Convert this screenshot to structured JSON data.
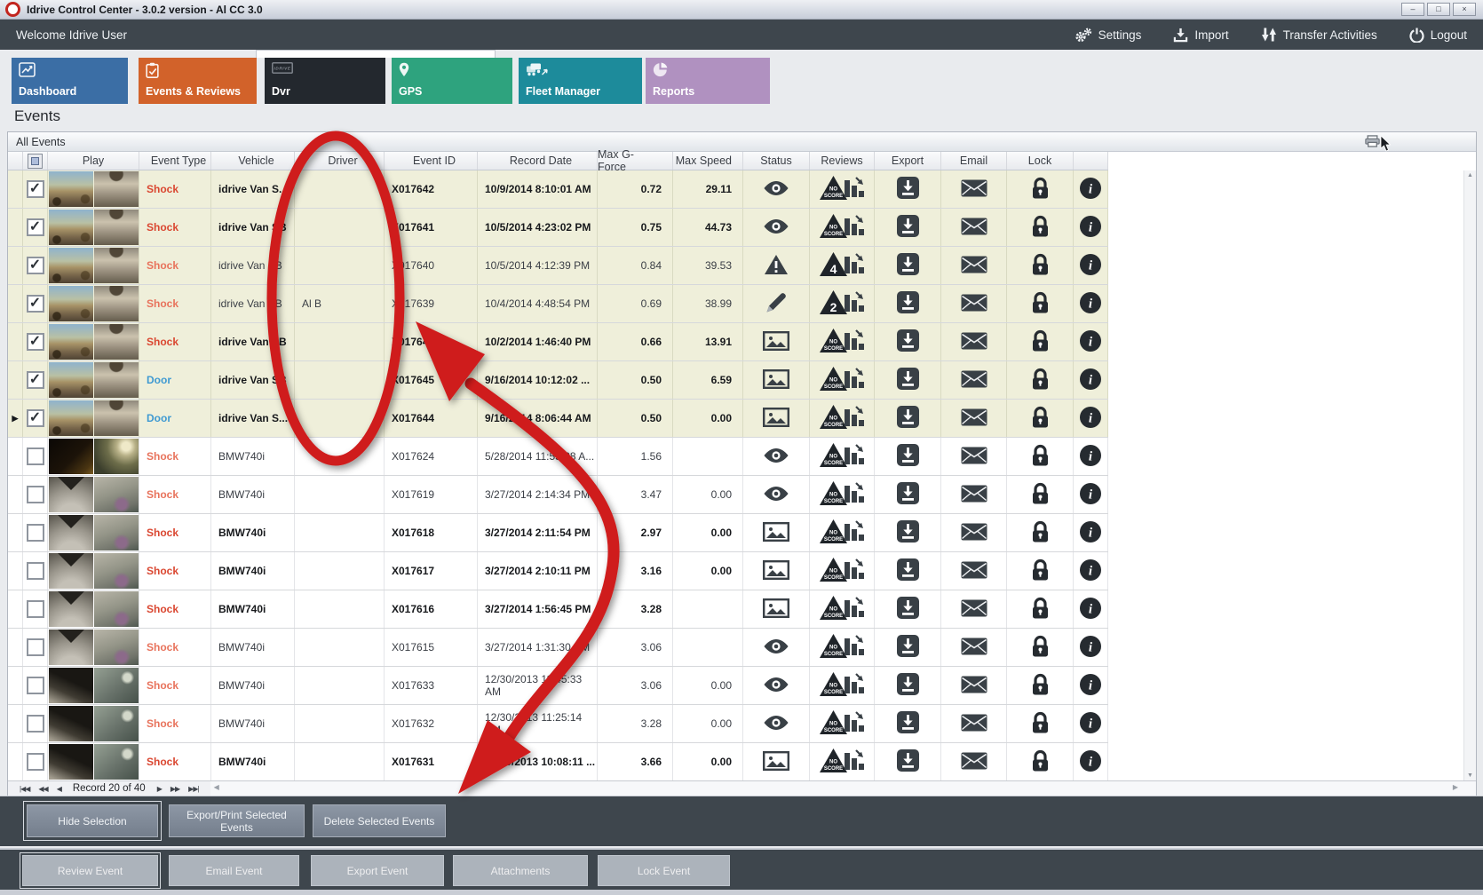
{
  "window": {
    "title": "Idrive Control Center - 3.0.2 version - Al CC 3.0",
    "controls": [
      "minimize",
      "maximize",
      "close"
    ]
  },
  "menubar": {
    "welcome": "Welcome Idrive User",
    "actions": [
      {
        "label": "Settings",
        "icon": "gears-icon"
      },
      {
        "label": "Import",
        "icon": "import-icon"
      },
      {
        "label": "Transfer Activities",
        "icon": "transfer-arrows-icon"
      },
      {
        "label": "Logout",
        "icon": "power-icon"
      }
    ]
  },
  "tabs": [
    {
      "label": "Dashboard",
      "color": "#3b6ea5",
      "icon": "line-chart-icon",
      "active": false
    },
    {
      "label": "Events & Reviews",
      "color": "#d2622a",
      "icon": "clipboard-icon",
      "active": true
    },
    {
      "label": "Dvr",
      "color": "#23282e",
      "icon": "dvr-device-icon",
      "active": false
    },
    {
      "label": "GPS",
      "color": "#2ea37e",
      "icon": "map-pin-icon",
      "active": false
    },
    {
      "label": "Fleet Manager",
      "color": "#1d8b9b",
      "icon": "fleet-trucks-icon",
      "active": false
    },
    {
      "label": "Reports",
      "color": "#b091c0",
      "icon": "pie-chart-icon",
      "active": false
    }
  ],
  "page": {
    "heading": "Events",
    "group_title": "All Events"
  },
  "table": {
    "columns": [
      "",
      "",
      "Play",
      "Event Type",
      "Vehicle",
      "Driver",
      "Event ID",
      "Record Date",
      "Max G-Force",
      "Max Speed",
      "Status",
      "Reviews",
      "Export",
      "Email",
      "Lock",
      ""
    ],
    "events": [
      {
        "current": false,
        "checked": true,
        "bold": true,
        "event_type": "Shock",
        "vehicle": "idrive Van S...",
        "driver": "",
        "event_id": "X017642",
        "record_date": "10/9/2014 8:10:01 AM",
        "g_force": "0.72",
        "speed": "29.11",
        "status_icon": "eye-icon",
        "review": "NO SCORE",
        "thumb": "van"
      },
      {
        "current": false,
        "checked": true,
        "bold": true,
        "event_type": "Shock",
        "vehicle": "idrive Van SB",
        "driver": "",
        "event_id": "X017641",
        "record_date": "10/5/2014 4:23:02 PM",
        "g_force": "0.75",
        "speed": "44.73",
        "status_icon": "eye-icon",
        "review": "NO SCORE",
        "thumb": "van"
      },
      {
        "current": false,
        "checked": true,
        "bold": false,
        "event_type": "Shock",
        "vehicle": "idrive Van SB",
        "driver": "",
        "event_id": "X017640",
        "record_date": "10/5/2014 4:12:39 PM",
        "g_force": "0.84",
        "speed": "39.53",
        "status_icon": "warning-icon",
        "review": "4",
        "thumb": "van"
      },
      {
        "current": false,
        "checked": true,
        "bold": false,
        "event_type": "Shock",
        "vehicle": "idrive Van SB",
        "driver": "Al B",
        "event_id": "X017639",
        "record_date": "10/4/2014 4:48:54 PM",
        "g_force": "0.69",
        "speed": "38.99",
        "status_icon": "pencil-icon",
        "review": "2",
        "thumb": "van"
      },
      {
        "current": false,
        "checked": true,
        "bold": true,
        "event_type": "Shock",
        "vehicle": "idrive Van SB",
        "driver": "",
        "event_id": "X017643",
        "record_date": "10/2/2014 1:46:40 PM",
        "g_force": "0.66",
        "speed": "13.91",
        "status_icon": "snapshot-icon",
        "review": "NO SCORE",
        "thumb": "van"
      },
      {
        "current": false,
        "checked": true,
        "bold": true,
        "event_type": "Door",
        "vehicle": "idrive Van SB",
        "driver": "",
        "event_id": "X017645",
        "record_date": "9/16/2014 10:12:02 ...",
        "g_force": "0.50",
        "speed": "6.59",
        "status_icon": "snapshot-icon",
        "review": "NO SCORE",
        "thumb": "van"
      },
      {
        "current": true,
        "checked": true,
        "bold": true,
        "event_type": "Door",
        "vehicle": "idrive Van S...",
        "driver": "",
        "event_id": "X017644",
        "record_date": "9/16/2014 8:06:44 AM",
        "g_force": "0.50",
        "speed": "0.00",
        "status_icon": "snapshot-icon",
        "review": "NO SCORE",
        "thumb": "van"
      },
      {
        "current": false,
        "checked": false,
        "bold": false,
        "event_type": "Shock",
        "vehicle": "BMW740i",
        "driver": "",
        "event_id": "X017624",
        "record_date": "5/28/2014 11:55:28 A...",
        "g_force": "1.56",
        "speed": "",
        "status_icon": "eye-icon",
        "review": "NO SCORE",
        "thumb": "night"
      },
      {
        "current": false,
        "checked": false,
        "bold": false,
        "event_type": "Shock",
        "vehicle": "BMW740i",
        "driver": "",
        "event_id": "X017619",
        "record_date": "3/27/2014 2:14:34 PM",
        "g_force": "3.47",
        "speed": "0.00",
        "status_icon": "eye-icon",
        "review": "NO SCORE",
        "thumb": "gray"
      },
      {
        "current": false,
        "checked": false,
        "bold": true,
        "event_type": "Shock",
        "vehicle": "BMW740i",
        "driver": "",
        "event_id": "X017618",
        "record_date": "3/27/2014 2:11:54 PM",
        "g_force": "2.97",
        "speed": "0.00",
        "status_icon": "snapshot-icon",
        "review": "NO SCORE",
        "thumb": "gray"
      },
      {
        "current": false,
        "checked": false,
        "bold": true,
        "event_type": "Shock",
        "vehicle": "BMW740i",
        "driver": "",
        "event_id": "X017617",
        "record_date": "3/27/2014 2:10:11 PM",
        "g_force": "3.16",
        "speed": "0.00",
        "status_icon": "snapshot-icon",
        "review": "NO SCORE",
        "thumb": "gray"
      },
      {
        "current": false,
        "checked": false,
        "bold": true,
        "event_type": "Shock",
        "vehicle": "BMW740i",
        "driver": "",
        "event_id": "X017616",
        "record_date": "3/27/2014 1:56:45 PM",
        "g_force": "3.28",
        "speed": "",
        "status_icon": "snapshot-icon",
        "review": "NO SCORE",
        "thumb": "gray"
      },
      {
        "current": false,
        "checked": false,
        "bold": false,
        "event_type": "Shock",
        "vehicle": "BMW740i",
        "driver": "",
        "event_id": "X017615",
        "record_date": "3/27/2014 1:31:30 PM",
        "g_force": "3.06",
        "speed": "",
        "status_icon": "eye-icon",
        "review": "NO SCORE",
        "thumb": "gray"
      },
      {
        "current": false,
        "checked": false,
        "bold": false,
        "event_type": "Shock",
        "vehicle": "BMW740i",
        "driver": "",
        "event_id": "X017633",
        "record_date": "12/30/2013 11:45:33 AM",
        "g_force": "3.06",
        "speed": "0.00",
        "status_icon": "eye-icon",
        "review": "NO SCORE",
        "thumb": "dark"
      },
      {
        "current": false,
        "checked": false,
        "bold": false,
        "event_type": "Shock",
        "vehicle": "BMW740i",
        "driver": "",
        "event_id": "X017632",
        "record_date": "12/30/2013 11:25:14 AM",
        "g_force": "3.28",
        "speed": "0.00",
        "status_icon": "eye-icon",
        "review": "NO SCORE",
        "thumb": "dark"
      },
      {
        "current": false,
        "checked": false,
        "bold": true,
        "event_type": "Shock",
        "vehicle": "BMW740i",
        "driver": "",
        "event_id": "X017631",
        "record_date": "12/30/2013 10:08:11 ...",
        "g_force": "3.66",
        "speed": "0.00",
        "status_icon": "snapshot-icon",
        "review": "NO SCORE",
        "thumb": "dark"
      }
    ]
  },
  "pagination": {
    "record_label": "Record 20 of 40",
    "nav_left": [
      "first-record",
      "prev-page",
      "prev-record"
    ],
    "nav_right": [
      "next-record",
      "next-page",
      "last-record"
    ]
  },
  "selection_buttons": [
    {
      "label": "Hide Selection",
      "focused": true
    },
    {
      "label": "Export/Print Selected Events",
      "focused": false
    },
    {
      "label": "Delete Selected  Events",
      "focused": false
    }
  ],
  "event_buttons": [
    {
      "label": "Review Event",
      "focused": true
    },
    {
      "label": "Email Event",
      "focused": false
    },
    {
      "label": "Export Event",
      "focused": false
    },
    {
      "label": "Attachments",
      "focused": false
    },
    {
      "label": "Lock Event",
      "focused": false
    }
  ],
  "review_icon": {
    "no_score_line1": "NO",
    "no_score_line2": "SCORE"
  },
  "colors": {
    "accent_orange": "#d2622a",
    "shock_red": "#da4731",
    "door_blue": "#3f9ad2",
    "selected_row": "#efefda",
    "panel_dark": "#3e464d",
    "annotation_red": "#cf1d1d"
  }
}
